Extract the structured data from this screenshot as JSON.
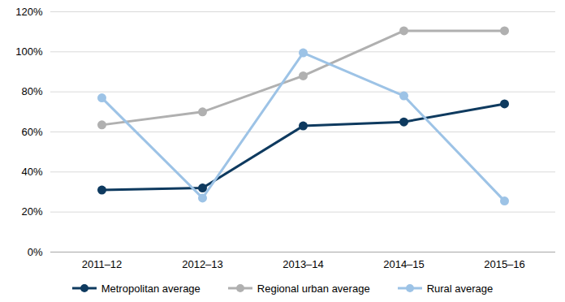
{
  "chart_data": {
    "type": "line",
    "categories": [
      "2011–12",
      "2012–13",
      "2013–14",
      "2014–15",
      "2015–16"
    ],
    "series": [
      {
        "name": "Metropolitan average",
        "color": "#0e3a5f",
        "values": [
          31,
          32,
          63,
          65,
          74
        ]
      },
      {
        "name": "Regional urban average",
        "color": "#b0b0b0",
        "values": [
          63.5,
          70,
          88,
          110.5,
          110.5
        ]
      },
      {
        "name": "Rural average",
        "color": "#9dc3e6",
        "values": [
          77,
          27,
          99.5,
          78,
          25.5
        ]
      }
    ],
    "ylim": [
      0,
      120
    ],
    "yticks": [
      {
        "value": 0,
        "label": "0%"
      },
      {
        "value": 20,
        "label": "20%"
      },
      {
        "value": 40,
        "label": "40%"
      },
      {
        "value": 60,
        "label": "60%"
      },
      {
        "value": 80,
        "label": "80%"
      },
      {
        "value": 100,
        "label": "100%"
      },
      {
        "value": 120,
        "label": "120%"
      }
    ],
    "grid": true,
    "marker": "circle",
    "legend": "bottom"
  }
}
